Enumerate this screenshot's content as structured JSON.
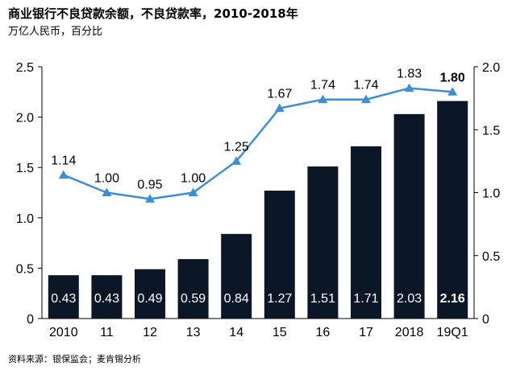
{
  "header": {
    "title": "商业银行不良贷款余额，不良贷款率，2010-2018年",
    "subtitle": "万亿人民币，百分比"
  },
  "footer": {
    "source": "资料来源：银保监会；麦肯锡分析"
  },
  "colors": {
    "bar": "#0b1626",
    "line": "#3a8fd9",
    "bar_label": "#ffffff",
    "axis": "#000000"
  },
  "chart_data": {
    "type": "bar",
    "categories": [
      "2010",
      "11",
      "12",
      "13",
      "14",
      "15",
      "16",
      "17",
      "2018",
      "19Q1"
    ],
    "series": [
      {
        "type": "bar",
        "axis": "left",
        "values": [
          0.43,
          0.43,
          0.49,
          0.59,
          0.84,
          1.27,
          1.51,
          1.71,
          2.03,
          2.16
        ],
        "labels": [
          "0.43",
          "0.43",
          "0.49",
          "0.59",
          "0.84",
          "1.27",
          "1.51",
          "1.71",
          "2.03",
          "2.16"
        ]
      },
      {
        "type": "line",
        "axis": "right",
        "values": [
          1.14,
          1.0,
          0.95,
          1.0,
          1.25,
          1.67,
          1.74,
          1.74,
          1.83,
          1.8
        ],
        "labels": [
          "1.14",
          "1.00",
          "0.95",
          "1.00",
          "1.25",
          "1.67",
          "1.74",
          "1.74",
          "1.83",
          "1.80"
        ]
      }
    ],
    "y_left": {
      "range": [
        0,
        2.5
      ],
      "ticks": [
        "0",
        "0.5",
        "1.0",
        "1.5",
        "2.0",
        "2.5"
      ]
    },
    "y_right": {
      "range": [
        0,
        2.0
      ],
      "ticks": [
        "0",
        "0.5",
        "1.0",
        "1.5",
        "2.0"
      ]
    },
    "highlight_last": true,
    "grid": false,
    "legend": "none"
  }
}
